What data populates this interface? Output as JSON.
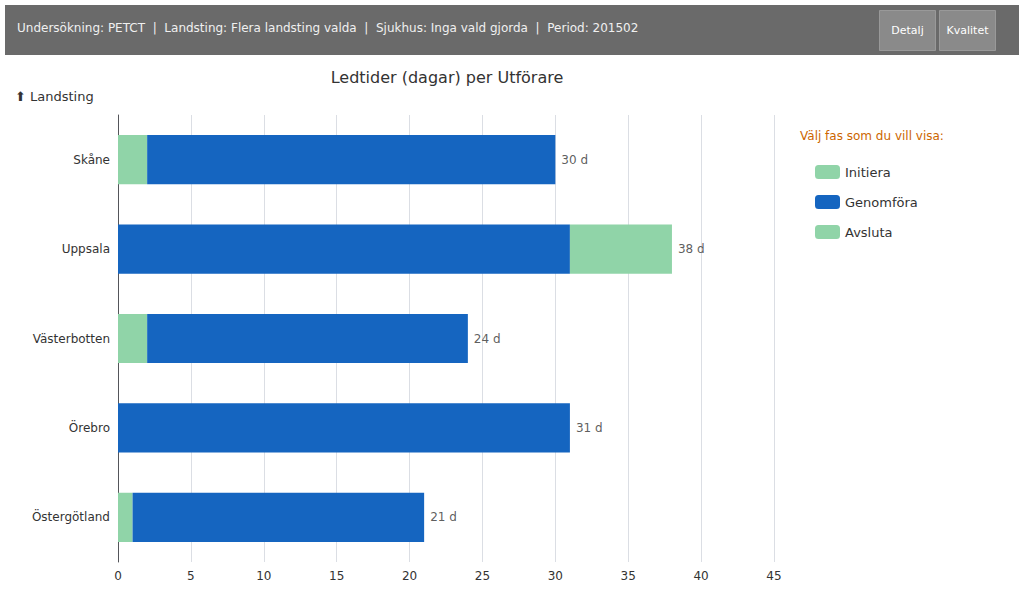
{
  "chart_data": {
    "type": "bar",
    "orientation": "horizontal",
    "stacked": true,
    "title": "Ledtider (dagar) per Utförare",
    "header": "Undersökning: PETCT  |  Landsting: Flera landsting valda  |  Sjukhus: Inga vald gjorda  |  Period: 201502",
    "buttons": [
      "Detalj",
      "Kvalitet"
    ],
    "ylabel": "⬆ Landsting",
    "legend_title": "Välj fas som du vill visa:",
    "categories": [
      "Skåne",
      "Uppsala",
      "Västerbotten",
      "Örebro",
      "Östergötland"
    ],
    "series": [
      {
        "name": "Initiera",
        "color": "#90D4A8",
        "values": [
          2,
          0,
          2,
          0,
          1
        ]
      },
      {
        "name": "Genomföra",
        "color": "#1565C0",
        "values": [
          28,
          31,
          22,
          31,
          20
        ]
      },
      {
        "name": "Avsluta",
        "color": "#90D4A8",
        "values": [
          0,
          7,
          0,
          0,
          0
        ]
      }
    ],
    "annotations": [
      {
        "category": "Skåne",
        "value": 30,
        "text": "30 d"
      },
      {
        "category": "Uppsala",
        "value": 38,
        "text": "38 d"
      },
      {
        "category": "Västerbotten",
        "value": 24,
        "text": "24 d"
      },
      {
        "category": "Örebro",
        "value": 31,
        "text": "31 d"
      },
      {
        "category": "Östergötland",
        "value": 21,
        "text": "21 d"
      }
    ],
    "xlim": [
      0,
      45
    ],
    "xticks": [
      0,
      5,
      10,
      15,
      20,
      25,
      30,
      35,
      40,
      45
    ],
    "grid": true,
    "legend": "right"
  }
}
